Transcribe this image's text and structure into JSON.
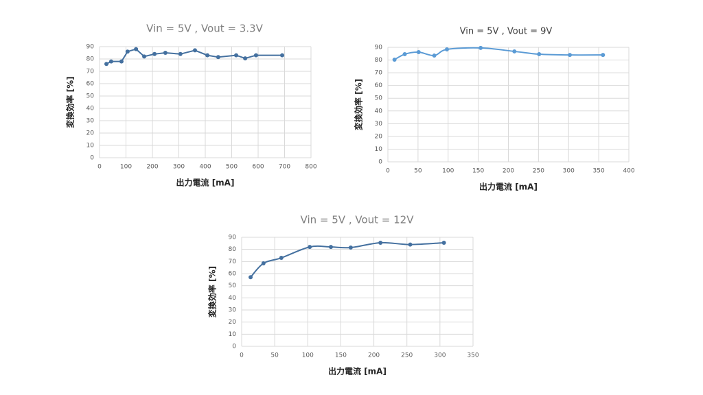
{
  "chart_data": [
    {
      "type": "line",
      "title": "Vin = 5V , Vout = 3.3V",
      "xlabel": "出力電流 [mA]",
      "ylabel": "変換効率 [%]",
      "x": [
        26,
        44,
        83,
        106,
        138,
        169,
        208,
        249,
        306,
        361,
        408,
        449,
        517,
        551,
        592,
        691
      ],
      "values": [
        76,
        78,
        78,
        86,
        88,
        82,
        84,
        85,
        84,
        87,
        83,
        81.5,
        83,
        80.5,
        83,
        83
      ],
      "color": "#44709f",
      "smooth": false,
      "grid": true,
      "xlim": [
        0,
        800
      ],
      "xticks": [
        0,
        100,
        200,
        300,
        400,
        500,
        600,
        700,
        800
      ],
      "ylim": [
        0,
        90
      ],
      "yticks": [
        0,
        10,
        20,
        30,
        40,
        50,
        60,
        70,
        80,
        90
      ]
    },
    {
      "type": "line",
      "title": "Vin = 5V , Vout = 9V",
      "xlabel": "出力電流 [mA]",
      "ylabel": "変換効率 [%]",
      "x": [
        11,
        28,
        51,
        77,
        98,
        154,
        210,
        251,
        302,
        357
      ],
      "values": [
        80.3,
        84.6,
        86.2,
        83.5,
        88.4,
        89.5,
        86.8,
        84.6,
        84,
        84
      ],
      "color": "#5b9bd5",
      "smooth": true,
      "grid": true,
      "xlim": [
        0,
        400
      ],
      "xticks": [
        0,
        50,
        100,
        150,
        200,
        250,
        300,
        350,
        400
      ],
      "ylim": [
        0,
        90
      ],
      "yticks": [
        0,
        10,
        20,
        30,
        40,
        50,
        60,
        70,
        80,
        90
      ]
    },
    {
      "type": "line",
      "title": "Vin = 5V , Vout = 12V",
      "xlabel": "出力電流 [mA]",
      "ylabel": "変換効率 [%]",
      "x": [
        13.5,
        33,
        60,
        103,
        135,
        165,
        210,
        255,
        306
      ],
      "values": [
        57,
        68.5,
        73,
        82,
        82,
        81.5,
        85.5,
        84,
        85.5
      ],
      "color": "#44709f",
      "smooth": true,
      "grid": true,
      "xlim": [
        0,
        350
      ],
      "xticks": [
        0,
        50,
        100,
        150,
        200,
        250,
        300,
        350
      ],
      "ylim": [
        0,
        90
      ],
      "yticks": [
        0,
        10,
        20,
        30,
        40,
        50,
        60,
        70,
        80,
        90
      ]
    }
  ]
}
